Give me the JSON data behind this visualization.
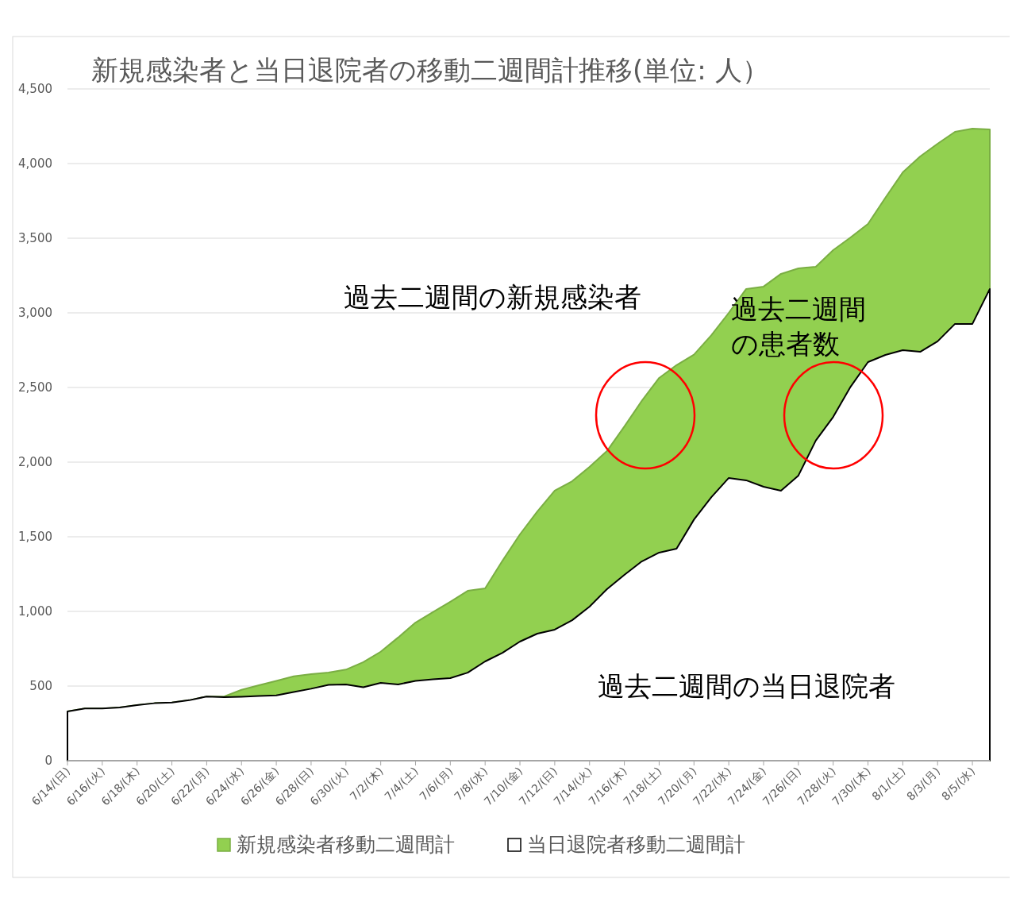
{
  "chart_data": {
    "type": "area",
    "title": "新規感染者と当日退院者の移動二週間計推移(単位: 人）",
    "categories": [
      "6/14/(日)",
      null,
      "6/16/(火)",
      null,
      "6/18/(木)",
      null,
      "6/20/(土)",
      null,
      "6/22/(月)",
      null,
      "6/24/(水)",
      null,
      "6/26/(金)",
      null,
      "6/28/(日)",
      null,
      "6/30/(火)",
      null,
      "7/2/(木)",
      null,
      "7/4/(土)",
      null,
      "7/6/(月)",
      null,
      "7/8/(水)",
      null,
      "7/10/(金)",
      null,
      "7/12/(日)",
      null,
      "7/14/(火)",
      null,
      "7/16/(木)",
      null,
      "7/18/(土)",
      null,
      "7/20/(月)",
      null,
      "7/22/(水)",
      null,
      "7/24/(金)",
      null,
      "7/26/(日)",
      null,
      "7/28/(火)",
      null,
      "7/30/(木)",
      null,
      "8/1/(土)",
      null,
      "8/3/(月)",
      null,
      "8/5/(水)",
      null
    ],
    "series": [
      {
        "name": "新規感染者移動二週間計",
        "color": "#92d050",
        "values": [
          330,
          350,
          350,
          356,
          372,
          385,
          390,
          405,
          430,
          430,
          475,
          505,
          535,
          565,
          580,
          590,
          610,
          660,
          730,
          825,
          925,
          995,
          1065,
          1138,
          1154,
          1340,
          1516,
          1670,
          1809,
          1872,
          1968,
          2074,
          2239,
          2410,
          2564,
          2650,
          2720,
          2850,
          3000,
          3160,
          3176,
          3261,
          3298,
          3309,
          3420,
          3505,
          3596,
          3771,
          3941,
          4048,
          4133,
          4213,
          4234,
          4229
        ]
      },
      {
        "name": "当日退院者移動二週間計",
        "color": "#ffffff",
        "values": [
          330,
          350,
          350,
          356,
          372,
          385,
          390,
          405,
          430,
          425,
          428,
          433,
          438,
          460,
          482,
          508,
          511,
          492,
          521,
          511,
          535,
          545,
          553,
          590,
          665,
          723,
          798,
          851,
          878,
          941,
          1032,
          1149,
          1245,
          1335,
          1394,
          1420,
          1615,
          1765,
          1894,
          1878,
          1835,
          1809,
          1910,
          2144,
          2303,
          2505,
          2670,
          2718,
          2750,
          2739,
          2809,
          2926,
          2926,
          3160
        ]
      }
    ],
    "ylim": [
      0,
      4500
    ],
    "yticks": [
      {
        "value": 0,
        "label": "0"
      },
      {
        "value": 500,
        "label": "500"
      },
      {
        "value": 1000,
        "label": "1,000"
      },
      {
        "value": 1500,
        "label": "1,500"
      },
      {
        "value": 2000,
        "label": "2,000"
      },
      {
        "value": 2500,
        "label": "2,500"
      },
      {
        "value": 3000,
        "label": "3,000"
      },
      {
        "value": 3500,
        "label": "3,500"
      },
      {
        "value": 4000,
        "label": "4,000"
      },
      {
        "value": 4500,
        "label": "4,500"
      }
    ],
    "grid": "y",
    "legend": "bottom",
    "annotations": [
      "過去二週間の新規感染者",
      "過去二週間の患者数",
      "過去二週間の当日退院者"
    ]
  }
}
